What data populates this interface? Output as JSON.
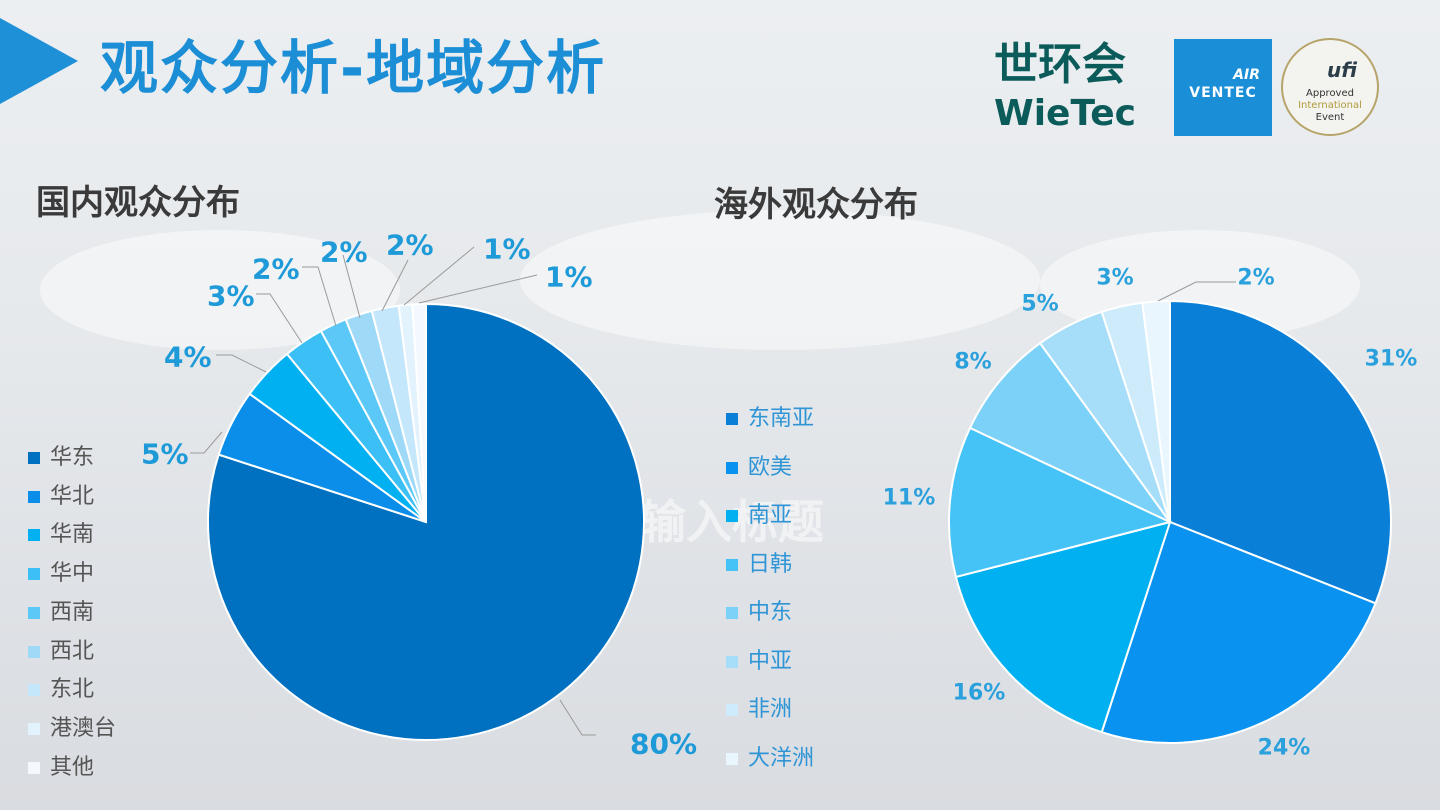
{
  "header": {
    "title": "观众分析-地域分析"
  },
  "logos": {
    "wietec": {
      "cn": "世环会",
      "en": "WieTec"
    },
    "airventec": {
      "line1": "AIR",
      "line2": "VENTEC"
    },
    "ufi": {
      "mark": "ufi",
      "line1": "Approved",
      "line2": "International",
      "line3": "Event"
    }
  },
  "background_text": {
    "middle": "输入标题"
  },
  "colors": {
    "domestic": [
      "#0070c0",
      "#0a8eea",
      "#00b0f0",
      "#3cbff5",
      "#5cc8f7",
      "#9ed9f8",
      "#c5e7fb",
      "#e3f3fd",
      "#f3f9fe"
    ],
    "overseas": [
      "#0a7fd8",
      "#0a92f0",
      "#00b0f0",
      "#45c3f7",
      "#7bd1f8",
      "#a6ddf9",
      "#cdebfb",
      "#eaf6fe"
    ],
    "domestic_label": "#1e9ad8",
    "overseas_label": "#2aa0dc"
  },
  "chart_data": [
    {
      "type": "pie",
      "title": "国内观众分布",
      "categories": [
        "华东",
        "华北",
        "华南",
        "华中",
        "西南",
        "西北",
        "东北",
        "港澳台",
        "其他"
      ],
      "values": [
        80,
        5,
        4,
        3,
        2,
        2,
        2,
        1,
        1
      ],
      "data_labels": [
        "80%",
        "5%",
        "4%",
        "3%",
        "2%",
        "2%",
        "2%",
        "1%",
        "1%"
      ],
      "legend_position": "left"
    },
    {
      "type": "pie",
      "title": "海外观众分布",
      "categories": [
        "东南亚",
        "欧美",
        "南亚",
        "日韩",
        "中东",
        "中亚",
        "非洲",
        "大洋洲"
      ],
      "values": [
        31,
        24,
        16,
        11,
        8,
        5,
        3,
        2
      ],
      "data_labels": [
        "31%",
        "24%",
        "16%",
        "11%",
        "8%",
        "5%",
        "3%",
        "2%"
      ],
      "legend_position": "left"
    }
  ]
}
